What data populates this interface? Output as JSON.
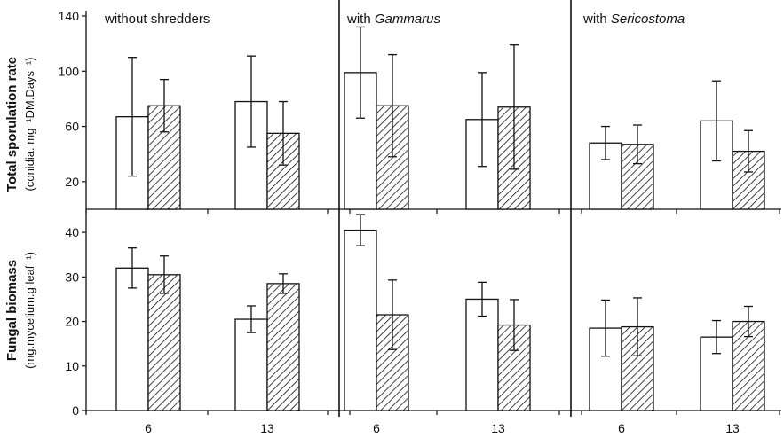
{
  "chart_data": [
    {
      "type": "bar",
      "row": "top",
      "ylabel": "Total sporulation rate",
      "ylabel_sub": "(conidia. mg⁻¹DM.Days⁻¹)",
      "ylim": [
        0,
        140
      ],
      "yticks": [
        20,
        60,
        100,
        140
      ],
      "categories": [
        "6",
        "13"
      ],
      "panels": [
        {
          "title": "without shredders",
          "title_plain": "without shredders",
          "title_italic": "",
          "series": [
            {
              "pattern": "open",
              "values": [
                67,
                78
              ],
              "err": [
                43,
                33
              ]
            },
            {
              "pattern": "hatched",
              "values": [
                75,
                55
              ],
              "err": [
                19,
                23
              ]
            }
          ]
        },
        {
          "title": "with Gammarus",
          "title_plain": "with ",
          "title_italic": "Gammarus",
          "series": [
            {
              "pattern": "open",
              "values": [
                99,
                65
              ],
              "err": [
                33,
                34
              ]
            },
            {
              "pattern": "hatched",
              "values": [
                75,
                74
              ],
              "err": [
                37,
                45
              ]
            }
          ]
        },
        {
          "title": "with Sericostoma",
          "title_plain": "with ",
          "title_italic": "Sericostoma",
          "series": [
            {
              "pattern": "open",
              "values": [
                48,
                64
              ],
              "err": [
                12,
                29
              ]
            },
            {
              "pattern": "hatched",
              "values": [
                47,
                42
              ],
              "err": [
                14,
                15
              ]
            }
          ]
        }
      ]
    },
    {
      "type": "bar",
      "row": "bottom",
      "ylabel": "Fungal biomass",
      "ylabel_sub": "(mg.mycelium.g leaf⁻¹)",
      "ylim": [
        0,
        45
      ],
      "yticks": [
        0,
        10,
        20,
        30,
        40
      ],
      "categories": [
        "6",
        "13"
      ],
      "panels": [
        {
          "series": [
            {
              "pattern": "open",
              "values": [
                32,
                20.5
              ],
              "err": [
                4.5,
                3
              ]
            },
            {
              "pattern": "hatched",
              "values": [
                30.5,
                28.5
              ],
              "err": [
                4.2,
                2.2
              ]
            }
          ]
        },
        {
          "series": [
            {
              "pattern": "open",
              "values": [
                40.5,
                25
              ],
              "err": [
                3.5,
                3.8
              ]
            },
            {
              "pattern": "hatched",
              "values": [
                21.5,
                19.2
              ],
              "err": [
                7.8,
                5.7
              ]
            }
          ]
        },
        {
          "series": [
            {
              "pattern": "open",
              "values": [
                18.5,
                16.5
              ],
              "err": [
                6.3,
                3.7
              ]
            },
            {
              "pattern": "hatched",
              "values": [
                18.8,
                20
              ],
              "err": [
                6.5,
                3.4
              ]
            }
          ]
        }
      ]
    }
  ]
}
